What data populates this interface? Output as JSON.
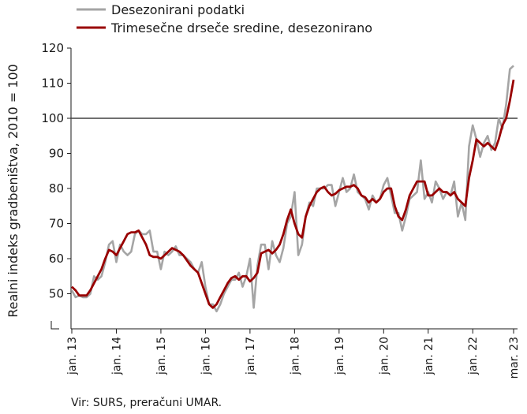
{
  "chart_data": {
    "type": "line",
    "ylabel": "Realni indeks gradbeništva, 2010 = 100",
    "source": "Vir: SURS, preračuni UMAR.",
    "ylim": [
      40,
      120
    ],
    "y_ticks": [
      50,
      60,
      70,
      80,
      90,
      100,
      110,
      120
    ],
    "y_tick_labels": [
      "50",
      "60",
      "70",
      "80",
      "90",
      "100",
      "110",
      "120"
    ],
    "reference_line": 100,
    "x_ticks": [
      "jan. 13",
      "jan. 14",
      "jan. 15",
      "jan. 16",
      "jan. 17",
      "jan. 18",
      "jan. 19",
      "jan. 20",
      "jan. 21",
      "jan. 22",
      "mar. 23"
    ],
    "legend": {
      "placement": "top-left",
      "entries": [
        "Desezonirani podatki",
        "Trimesečne drseče sredine, desezonirano"
      ]
    },
    "colors": {
      "series1": "#a5a5a5",
      "series2": "#990000",
      "reference": "#404040",
      "axis": "#1a1a1a"
    },
    "series": [
      {
        "name": "Desezonirani podatki",
        "values": [
          51,
          49,
          49.5,
          49,
          49,
          50,
          55,
          54,
          55,
          59,
          64,
          65,
          59,
          64,
          62,
          61,
          62,
          67,
          68,
          67,
          67,
          68,
          62,
          62,
          57,
          62,
          61,
          62,
          63.5,
          61,
          61,
          60,
          59,
          57,
          56,
          59,
          52,
          47,
          47,
          45,
          47,
          50,
          52,
          54,
          54,
          56,
          52,
          55,
          60,
          46,
          58,
          64,
          64,
          57,
          65,
          61,
          59,
          63,
          70,
          72,
          79,
          61,
          64,
          72,
          76,
          75,
          80,
          80,
          80,
          81,
          81,
          75,
          79,
          83,
          79,
          80,
          84,
          79,
          78,
          77,
          74,
          78,
          76,
          77,
          81,
          83,
          78,
          73,
          73,
          68,
          72,
          77,
          78,
          79,
          88,
          77,
          79,
          76,
          82,
          80,
          77,
          79,
          78,
          82,
          72,
          76,
          71,
          92,
          98,
          94,
          89,
          93,
          95,
          91,
          93,
          100,
          97,
          104,
          114,
          115
        ]
      },
      {
        "name": "Trimesečne drseče sredine, desezonirano",
        "values": [
          52,
          51,
          49.5,
          49.5,
          49.5,
          51,
          53,
          55,
          57,
          60,
          62.5,
          62,
          61,
          63,
          65,
          67,
          67.5,
          67.5,
          68,
          66,
          64,
          61,
          60.5,
          60.5,
          60,
          61,
          62,
          63,
          62.5,
          62,
          61,
          59.5,
          58,
          57,
          56,
          53,
          50,
          47,
          46,
          47,
          49,
          51,
          53,
          54.5,
          55,
          54,
          55,
          55,
          53.5,
          54.5,
          56,
          61.5,
          62,
          62.5,
          61.5,
          62.5,
          64,
          67,
          71,
          74,
          70,
          67,
          66,
          72,
          75,
          77,
          79,
          80,
          80.5,
          79,
          78,
          78.5,
          79.5,
          80,
          80.5,
          80.5,
          81,
          80,
          78,
          77.5,
          76,
          77,
          76,
          77,
          79,
          80,
          80,
          75,
          72,
          71,
          74,
          78,
          80,
          82,
          82,
          82,
          78,
          78,
          79,
          80,
          79,
          79,
          78,
          79,
          77,
          76,
          75,
          83,
          88,
          94,
          93,
          92,
          93,
          92,
          91,
          94,
          98,
          100,
          105,
          111
        ]
      }
    ]
  }
}
